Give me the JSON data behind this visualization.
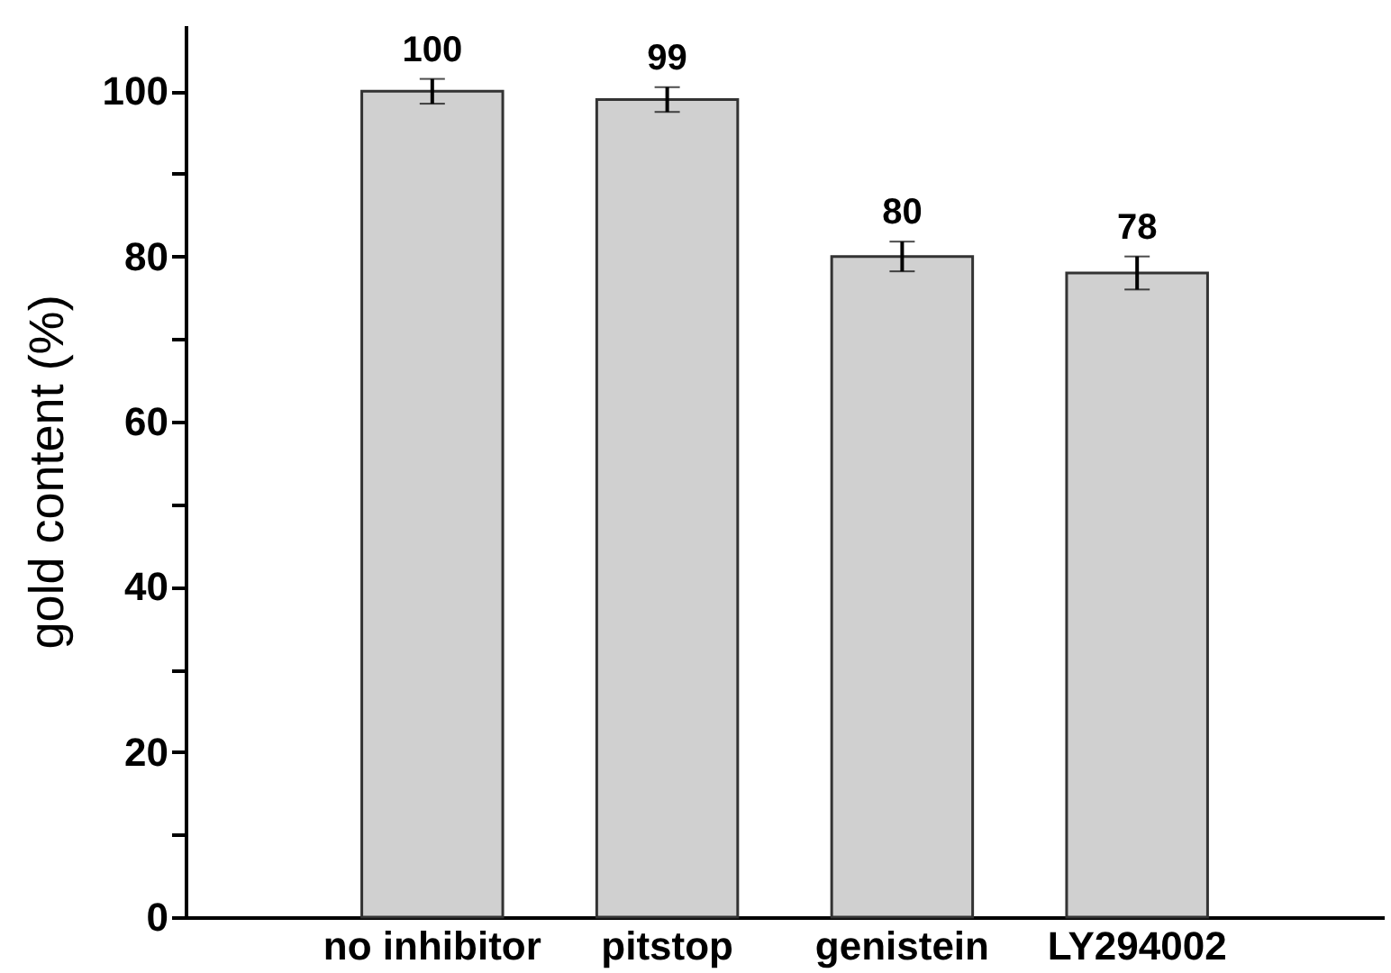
{
  "chart_data": {
    "type": "bar",
    "ylabel": "gold content (%)",
    "categories": [
      "no inhibitor",
      "pitstop",
      "genistein",
      "LY294002"
    ],
    "values": [
      100,
      99,
      80,
      78
    ],
    "errors": [
      1.5,
      1.5,
      1.8,
      2
    ],
    "color": "#d0d0d0",
    "data_labels": true,
    "ylim": [
      0,
      108
    ],
    "yticks": [
      0,
      {
        "value": 10,
        "label": null
      },
      20,
      {
        "value": 30,
        "label": null
      },
      40,
      {
        "value": 50,
        "label": null
      },
      60,
      {
        "value": 70,
        "label": null
      },
      80,
      {
        "value": 90,
        "label": null
      },
      100
    ],
    "grid": false
  }
}
